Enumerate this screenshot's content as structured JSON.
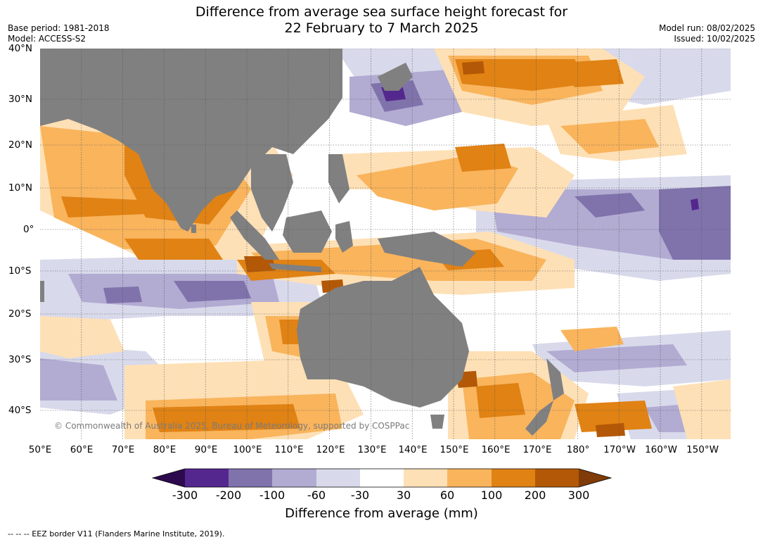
{
  "title_line1": "Difference from average sea surface height forecast for",
  "title_line2": "22 February to 7 March 2025",
  "base_period": "Base period: 1981-2018",
  "model": "Model: ACCESS-S2",
  "model_run": "Model run: 08/02/2025",
  "issued": "Issued: 10/02/2025",
  "copyright": "© Commonwealth of Australia 2025, Bureau of Meteorology, supported by COSPPac",
  "lon_labels": [
    "50°E",
    "60°E",
    "70°E",
    "80°E",
    "90°E",
    "100°E",
    "110°E",
    "120°E",
    "130°E",
    "140°E",
    "150°E",
    "160°E",
    "170°E",
    "180°",
    "170°W",
    "160°W",
    "150°W"
  ],
  "lat_labels": [
    "40°N",
    "30°N",
    "20°N",
    "10°N",
    "0°",
    "10°S",
    "20°S",
    "30°S",
    "40°S"
  ],
  "colorbar": {
    "ticks": [
      "-300",
      "-200",
      "-100",
      "-60",
      "-30",
      "30",
      "60",
      "100",
      "200",
      "300"
    ],
    "colors": {
      "below_min": "#2d0a4e",
      "neg_300_200": "#54278f",
      "neg_200_100": "#8073ac",
      "neg_100_60": "#b2abd2",
      "neg_60_30": "#d8daeb",
      "neutral": "#ffffff",
      "pos_30_60": "#fee0b6",
      "pos_60_100": "#f9b45c",
      "pos_100_200": "#e08214",
      "pos_200_300": "#b35806",
      "above_max": "#7f3b08"
    },
    "label": "Difference from average (mm)"
  },
  "land_color": "#808080",
  "footer": "--  --  -- EEZ border V11 (Flanders Marine Institute, 2019)."
}
